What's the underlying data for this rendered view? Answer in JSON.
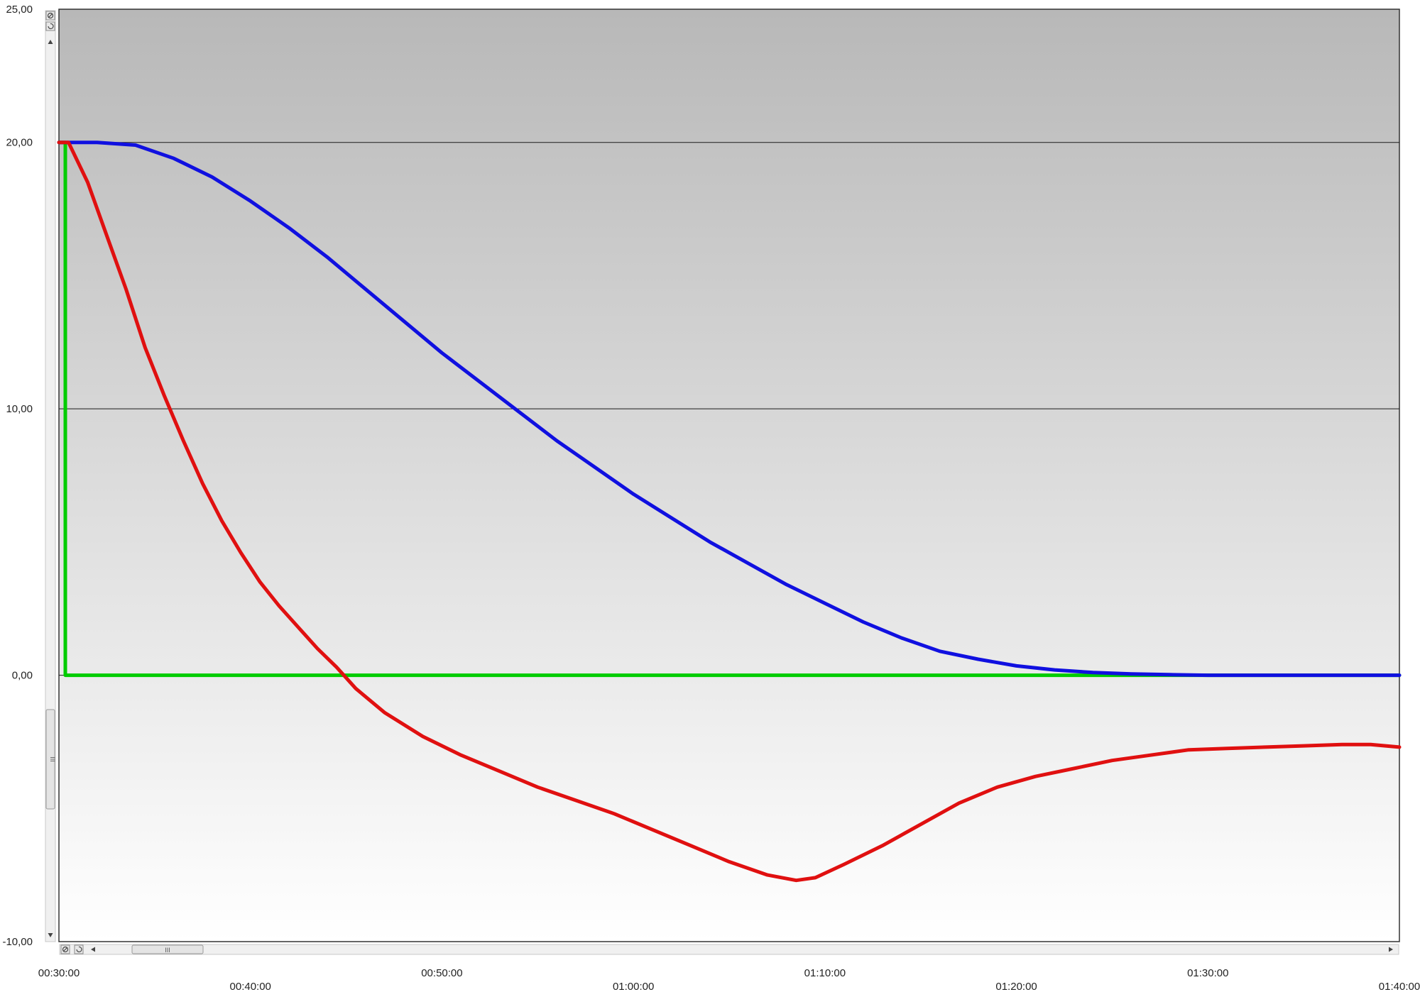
{
  "chart_data": {
    "type": "line",
    "ylim": [
      -10,
      25
    ],
    "xlim": [
      "00:30:00",
      "01:40:00"
    ],
    "y_ticks": [
      "25,00",
      "20,00",
      "10,00",
      "0,00",
      "-10,00"
    ],
    "x_ticks": [
      "00:30:00",
      "00:40:00",
      "00:50:00",
      "01:00:00",
      "01:10:00",
      "01:20:00",
      "01:30:00",
      "01:40:00"
    ],
    "grid": {
      "horizontal": true,
      "vertical": false
    },
    "series": [
      {
        "color": "#00cc00",
        "points": [
          [
            "00:30:00",
            20.0
          ],
          [
            "00:30:20",
            20.0
          ],
          [
            "00:30:20",
            0.0
          ],
          [
            "01:40:00",
            0.0
          ]
        ]
      },
      {
        "color": "#1010e0",
        "points": [
          [
            "00:30:00",
            20.0
          ],
          [
            "00:32:00",
            20.0
          ],
          [
            "00:34:00",
            19.9
          ],
          [
            "00:36:00",
            19.4
          ],
          [
            "00:38:00",
            18.7
          ],
          [
            "00:40:00",
            17.8
          ],
          [
            "00:42:00",
            16.8
          ],
          [
            "00:44:00",
            15.7
          ],
          [
            "00:46:00",
            14.5
          ],
          [
            "00:48:00",
            13.3
          ],
          [
            "00:50:00",
            12.1
          ],
          [
            "00:52:00",
            11.0
          ],
          [
            "00:54:00",
            9.9
          ],
          [
            "00:56:00",
            8.8
          ],
          [
            "00:58:00",
            7.8
          ],
          [
            "01:00:00",
            6.8
          ],
          [
            "01:02:00",
            5.9
          ],
          [
            "01:04:00",
            5.0
          ],
          [
            "01:06:00",
            4.2
          ],
          [
            "01:08:00",
            3.4
          ],
          [
            "01:10:00",
            2.7
          ],
          [
            "01:12:00",
            2.0
          ],
          [
            "01:14:00",
            1.4
          ],
          [
            "01:16:00",
            0.9
          ],
          [
            "01:18:00",
            0.6
          ],
          [
            "01:20:00",
            0.35
          ],
          [
            "01:22:00",
            0.2
          ],
          [
            "01:24:00",
            0.1
          ],
          [
            "01:26:00",
            0.05
          ],
          [
            "01:28:00",
            0.02
          ],
          [
            "01:30:00",
            0.0
          ],
          [
            "01:35:00",
            0.0
          ],
          [
            "01:40:00",
            0.0
          ]
        ]
      },
      {
        "color": "#e01010",
        "points": [
          [
            "00:30:00",
            20.0
          ],
          [
            "00:30:30",
            20.0
          ],
          [
            "00:31:30",
            18.5
          ],
          [
            "00:32:30",
            16.5
          ],
          [
            "00:33:30",
            14.5
          ],
          [
            "00:34:30",
            12.3
          ],
          [
            "00:35:30",
            10.5
          ],
          [
            "00:36:30",
            8.8
          ],
          [
            "00:37:30",
            7.2
          ],
          [
            "00:38:30",
            5.8
          ],
          [
            "00:39:30",
            4.6
          ],
          [
            "00:40:30",
            3.5
          ],
          [
            "00:41:30",
            2.6
          ],
          [
            "00:42:30",
            1.8
          ],
          [
            "00:43:30",
            1.0
          ],
          [
            "00:44:30",
            0.3
          ],
          [
            "00:45:30",
            -0.5
          ],
          [
            "00:47:00",
            -1.4
          ],
          [
            "00:49:00",
            -2.3
          ],
          [
            "00:51:00",
            -3.0
          ],
          [
            "00:53:00",
            -3.6
          ],
          [
            "00:55:00",
            -4.2
          ],
          [
            "00:57:00",
            -4.7
          ],
          [
            "00:59:00",
            -5.2
          ],
          [
            "01:01:00",
            -5.8
          ],
          [
            "01:03:00",
            -6.4
          ],
          [
            "01:05:00",
            -7.0
          ],
          [
            "01:07:00",
            -7.5
          ],
          [
            "01:08:30",
            -7.7
          ],
          [
            "01:09:30",
            -7.6
          ],
          [
            "01:11:00",
            -7.1
          ],
          [
            "01:13:00",
            -6.4
          ],
          [
            "01:15:00",
            -5.6
          ],
          [
            "01:17:00",
            -4.8
          ],
          [
            "01:19:00",
            -4.2
          ],
          [
            "01:21:00",
            -3.8
          ],
          [
            "01:23:00",
            -3.5
          ],
          [
            "01:25:00",
            -3.2
          ],
          [
            "01:27:00",
            -3.0
          ],
          [
            "01:29:00",
            -2.8
          ],
          [
            "01:31:00",
            -2.75
          ],
          [
            "01:33:00",
            -2.7
          ],
          [
            "01:35:00",
            -2.65
          ],
          [
            "01:37:00",
            -2.6
          ],
          [
            "01:38:30",
            -2.6
          ],
          [
            "01:40:00",
            -2.7
          ]
        ]
      }
    ]
  },
  "controls": {
    "scrollbar_thumb_glyph": "III"
  }
}
